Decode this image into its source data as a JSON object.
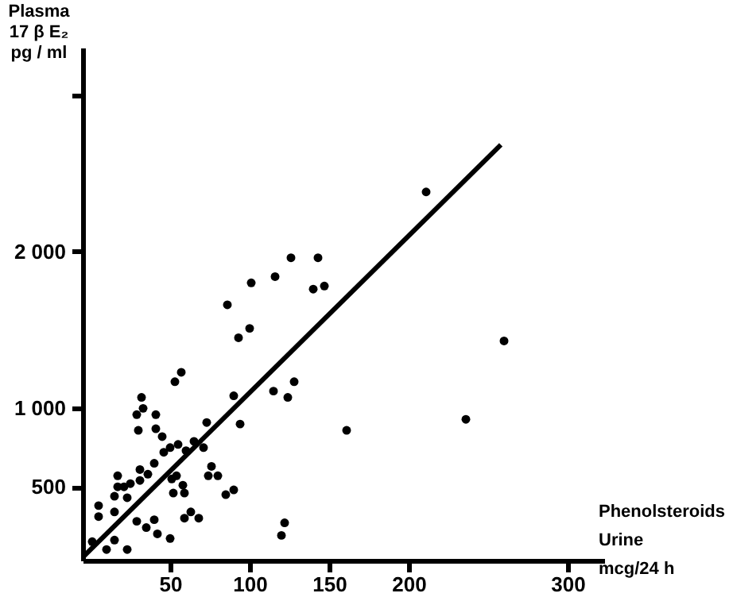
{
  "chart_data": {
    "type": "scatter",
    "xlabel": "Phenolsteroids\nUrine\nmcg/24 h",
    "ylabel": "Plasma\n17 β E₂\npg / ml",
    "xlim": [
      -5,
      323
    ],
    "ylim": [
      30,
      3300
    ],
    "xticks": [
      50,
      100,
      150,
      200,
      300
    ],
    "yticks": [
      500,
      {
        "value": 1000,
        "label": "1 000"
      },
      {
        "value": 2000,
        "label": "2 000"
      },
      {
        "value": 3000,
        "label": null
      }
    ],
    "grid": false,
    "marker": "circle",
    "series": [
      {
        "color": "#000000",
        "x": [
          1,
          5,
          5,
          10,
          15,
          23,
          15,
          15,
          17,
          17,
          21,
          23,
          25,
          29,
          30,
          31,
          32,
          33,
          31,
          36,
          29,
          35,
          40,
          42,
          40,
          41,
          41,
          45,
          46,
          50,
          51,
          50,
          52,
          53,
          54,
          55,
          57,
          58,
          59,
          59,
          60,
          63,
          65,
          68,
          71,
          73,
          74,
          76,
          80,
          85,
          86,
          90,
          90,
          93,
          94,
          100,
          101,
          115,
          116,
          120,
          122,
          124,
          128,
          126,
          143,
          140,
          147,
          161,
          211,
          236,
          260
        ],
        "values": [
          150,
          380,
          310,
          100,
          160,
          100,
          340,
          440,
          500,
          570,
          500,
          430,
          520,
          960,
          860,
          610,
          1070,
          1000,
          540,
          580,
          280,
          240,
          290,
          200,
          650,
          870,
          960,
          820,
          720,
          750,
          550,
          170,
          460,
          1170,
          570,
          770,
          1230,
          510,
          460,
          300,
          730,
          340,
          790,
          300,
          750,
          910,
          570,
          630,
          570,
          450,
          1660,
          480,
          1080,
          1450,
          900,
          1510,
          1800,
          1110,
          1840,
          190,
          270,
          1070,
          1170,
          1960,
          1960,
          1760,
          1780,
          860,
          2380,
          930,
          1430
        ]
      },
      {
        "type": "line",
        "color": "#000000",
        "x": [
          -4,
          258
        ],
        "values": [
          60,
          2680
        ],
        "line_style": "solid",
        "marker": "none"
      }
    ]
  }
}
